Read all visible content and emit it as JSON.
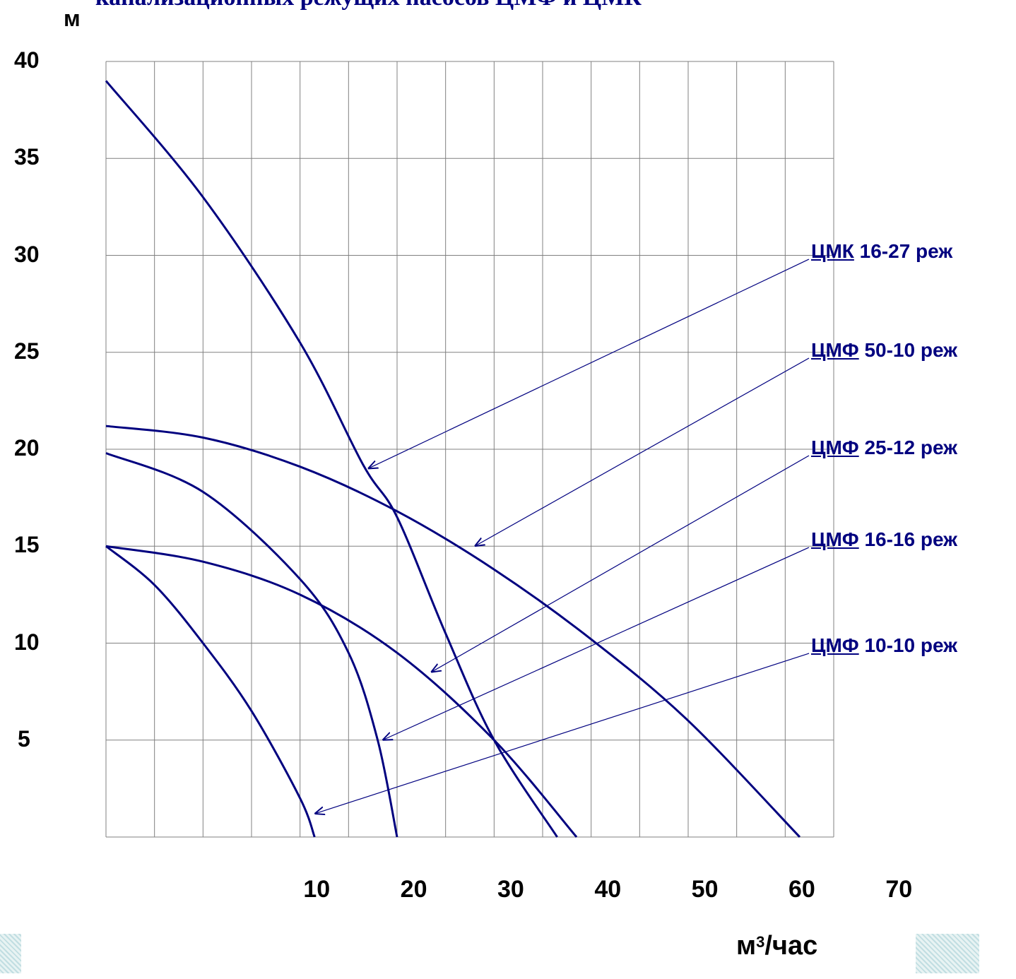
{
  "chart_data": {
    "type": "line",
    "title": "канализационных режущих насосов ЦМФ и ЦМК",
    "ylabel": "м",
    "xlabel": "м³/час",
    "xlim": [
      0,
      75
    ],
    "ylim": [
      0,
      40
    ],
    "x_ticks": [
      "10",
      "20",
      "30",
      "40",
      "50",
      "60",
      "70"
    ],
    "y_ticks": [
      "5",
      "10",
      "15",
      "20",
      "25",
      "30",
      "35",
      "40"
    ],
    "grid": true,
    "series": [
      {
        "name": "ЦМК 16-27 реж",
        "prefix": "ЦМК",
        "suffix": " 16-27 реж",
        "x": [
          0,
          10,
          20,
          26.5,
          30,
          35,
          40,
          46.5
        ],
        "y": [
          39,
          33,
          25.5,
          19.2,
          16.5,
          10.5,
          5,
          0
        ],
        "arrow_to": [
          27,
          19.0
        ]
      },
      {
        "name": "ЦМФ 50-10 реж",
        "prefix": "ЦМФ",
        "suffix": " 50-10 реж",
        "x": [
          0,
          10,
          20,
          30,
          40,
          50,
          60,
          71.5
        ],
        "y": [
          21.2,
          20.6,
          19.1,
          16.8,
          13.8,
          10.2,
          6,
          0
        ],
        "arrow_to": [
          38,
          15.0
        ]
      },
      {
        "name": "ЦМФ 25-12 реж",
        "prefix": "ЦМФ",
        "suffix": " 25-12 реж",
        "x": [
          0,
          10,
          20,
          30,
          40,
          48.5
        ],
        "y": [
          15,
          14.2,
          12.5,
          9.5,
          5,
          0
        ],
        "arrow_to": [
          33.5,
          8.5
        ]
      },
      {
        "name": "ЦМФ 16-16 реж",
        "prefix": "ЦМФ",
        "suffix": " 16-16 реж",
        "x": [
          0,
          10,
          20,
          25,
          28,
          30
        ],
        "y": [
          19.8,
          17.8,
          13.3,
          9.5,
          5,
          0
        ],
        "arrow_to": [
          28.5,
          5.0
        ]
      },
      {
        "name": "ЦМФ 10-10 реж",
        "prefix": "ЦМФ",
        "suffix": " 10-10 реж",
        "x": [
          0,
          5,
          10,
          15,
          20,
          21.5
        ],
        "y": [
          15,
          13,
          10,
          6.5,
          2,
          0
        ],
        "arrow_to": [
          21.5,
          1.2
        ]
      }
    ]
  },
  "colors": {
    "curve": "#00007f",
    "grid": "#808080",
    "arrow": "#00007f"
  }
}
